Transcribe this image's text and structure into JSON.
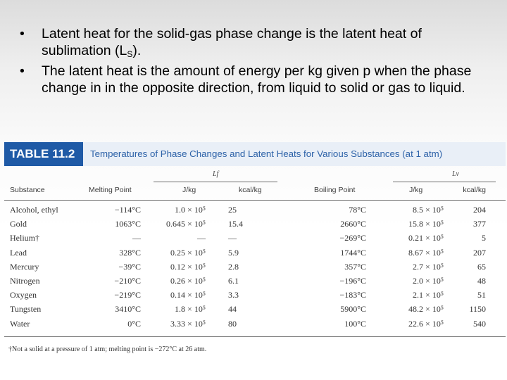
{
  "bullets": [
    {
      "pre": "Latent heat for the solid-gas phase change is the latent heat of sublimation (L",
      "sub": "S",
      "post": ")."
    },
    {
      "pre": "The latent heat is the amount of energy per kg given p when the phase change in in the opposite direction, from liquid to solid or gas to liquid.",
      "sub": "",
      "post": ""
    }
  ],
  "table": {
    "label": "TABLE 11.2",
    "caption": "Temperatures of Phase Changes and Latent Heats for Various Substances (at 1 atm)",
    "group_lf": "Lf",
    "group_lv": "Lv",
    "headers": {
      "substance": "Substance",
      "melting_point": "Melting Point",
      "lf_jkg": "J/kg",
      "lf_kcalkg": "kcal/kg",
      "boiling_point": "Boiling Point",
      "lv_jkg": "J/kg",
      "lv_kcalkg": "kcal/kg"
    },
    "rows": [
      {
        "substance": "Alcohol, ethyl",
        "melt": "−114°C",
        "lf_j": "1.0 × 10⁵",
        "lf_k": "25",
        "boil": "78°C",
        "lv_j": "8.5 × 10⁵",
        "lv_k": "204"
      },
      {
        "substance": "Gold",
        "melt": "1063°C",
        "lf_j": "0.645 × 10⁵",
        "lf_k": "15.4",
        "boil": "2660°C",
        "lv_j": "15.8 × 10⁵",
        "lv_k": "377"
      },
      {
        "substance": "Helium†",
        "melt": "—",
        "lf_j": "—",
        "lf_k": "—",
        "boil": "−269°C",
        "lv_j": "0.21 × 10⁵",
        "lv_k": "5"
      },
      {
        "substance": "Lead",
        "melt": "328°C",
        "lf_j": "0.25 × 10⁵",
        "lf_k": "5.9",
        "boil": "1744°C",
        "lv_j": "8.67 × 10⁵",
        "lv_k": "207"
      },
      {
        "substance": "Mercury",
        "melt": "−39°C",
        "lf_j": "0.12 × 10⁵",
        "lf_k": "2.8",
        "boil": "357°C",
        "lv_j": "2.7 × 10⁵",
        "lv_k": "65"
      },
      {
        "substance": "Nitrogen",
        "melt": "−210°C",
        "lf_j": "0.26 × 10⁵",
        "lf_k": "6.1",
        "boil": "−196°C",
        "lv_j": "2.0 × 10⁵",
        "lv_k": "48"
      },
      {
        "substance": "Oxygen",
        "melt": "−219°C",
        "lf_j": "0.14 × 10⁵",
        "lf_k": "3.3",
        "boil": "−183°C",
        "lv_j": "2.1 × 10⁵",
        "lv_k": "51"
      },
      {
        "substance": "Tungsten",
        "melt": "3410°C",
        "lf_j": "1.8 × 10⁵",
        "lf_k": "44",
        "boil": "5900°C",
        "lv_j": "48.2 × 10⁵",
        "lv_k": "1150"
      },
      {
        "substance": "Water",
        "melt": "0°C",
        "lf_j": "3.33 × 10⁵",
        "lf_k": "80",
        "boil": "100°C",
        "lv_j": "22.6 × 10⁵",
        "lv_k": "540"
      }
    ],
    "footnote": "†Not a solid at a pressure of 1 atm; melting point is −272°C at 26 atm."
  }
}
